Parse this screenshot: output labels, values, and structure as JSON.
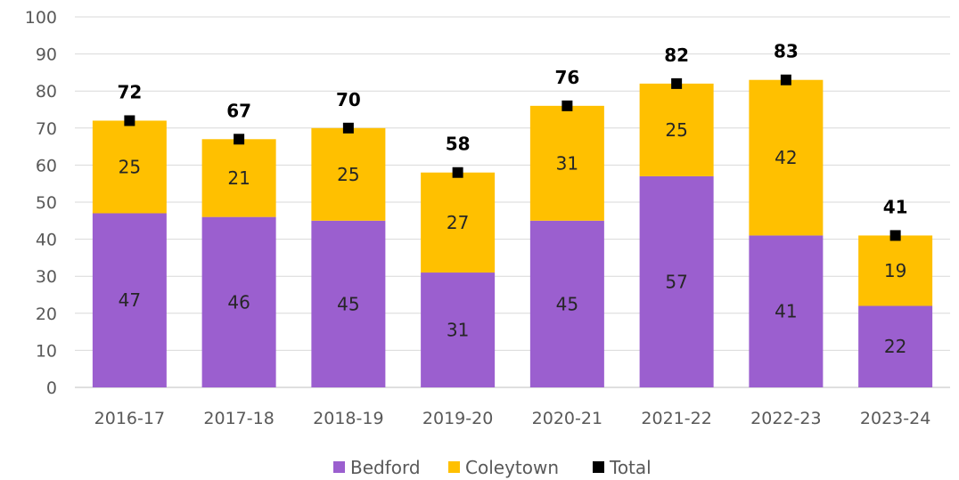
{
  "chart_data": {
    "type": "bar",
    "stacked": true,
    "categories": [
      "2016-17",
      "2017-18",
      "2018-19",
      "2019-20",
      "2020-21",
      "2021-22",
      "2022-23",
      "2023-24"
    ],
    "series": [
      {
        "name": "Bedford",
        "values": [
          47,
          46,
          45,
          31,
          45,
          57,
          41,
          22
        ],
        "color": "#9b5fcf"
      },
      {
        "name": "Coleytown",
        "values": [
          25,
          21,
          25,
          27,
          31,
          25,
          42,
          19
        ],
        "color": "#ffc000"
      }
    ],
    "total": {
      "name": "Total",
      "values": [
        72,
        67,
        70,
        58,
        76,
        82,
        83,
        41
      ],
      "color": "#000000",
      "marker": "square"
    },
    "ylim": [
      0,
      100
    ],
    "yticks": [
      0,
      10,
      20,
      30,
      40,
      50,
      60,
      70,
      80,
      90,
      100
    ],
    "grid": true,
    "legend": "bottom",
    "title": "",
    "xlabel": "",
    "ylabel": ""
  }
}
